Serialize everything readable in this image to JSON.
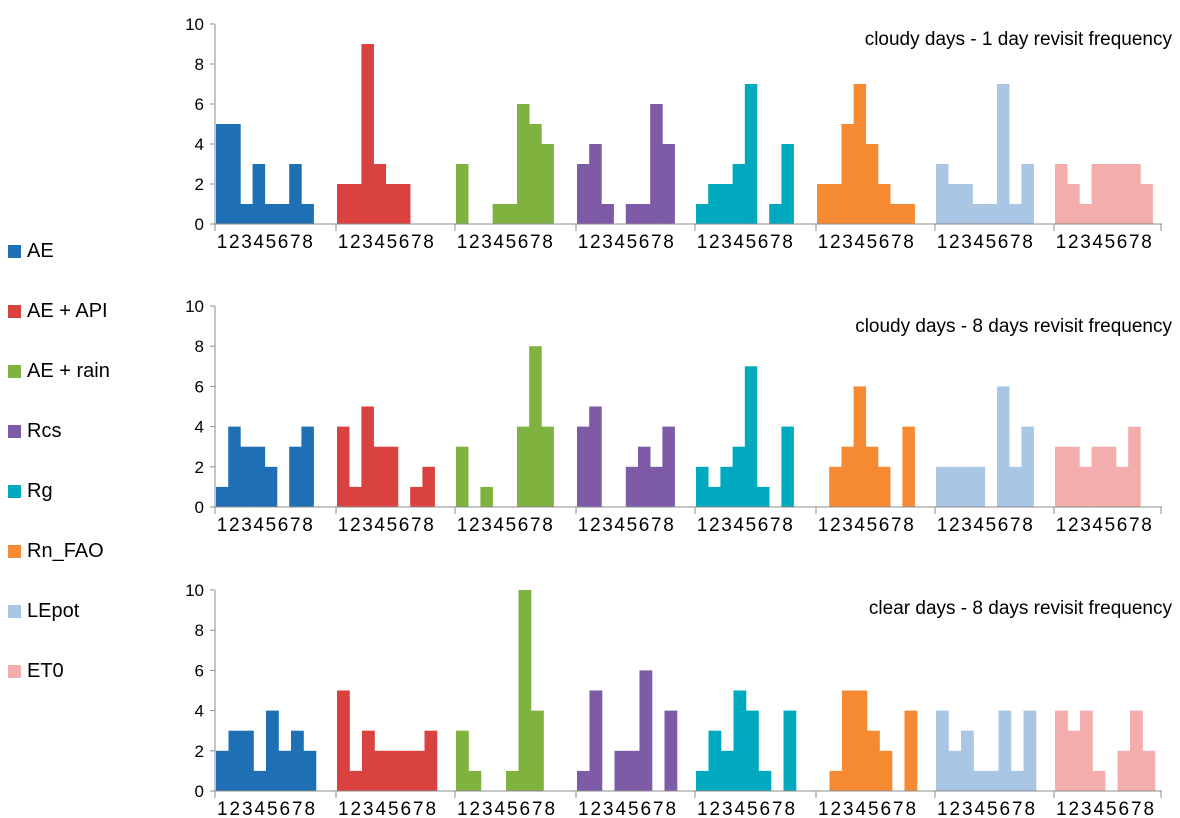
{
  "legend": [
    {
      "name": "AE",
      "color": "#1f6fb4"
    },
    {
      "name": "AE + API",
      "color": "#d9423f"
    },
    {
      "name": "AE + rain",
      "color": "#7fb23f"
    },
    {
      "name": "Rcs",
      "color": "#7e5ba6"
    },
    {
      "name": "Rg",
      "color": "#00a9be"
    },
    {
      "name": "Rn_FAO",
      "color": "#f68a32"
    },
    {
      "name": "LEpot",
      "color": "#a9c6e4"
    },
    {
      "name": "ET0",
      "color": "#f3adad"
    }
  ],
  "chart_data": [
    {
      "type": "bar",
      "title": "cloudy days - 1 day revisit frequency",
      "categories": [
        "1",
        "2",
        "3",
        "4",
        "5",
        "6",
        "7",
        "8"
      ],
      "ylim": [
        0,
        10
      ],
      "yticks": [
        "0",
        "2",
        "4",
        "6",
        "8",
        "10"
      ],
      "series": [
        {
          "name": "AE",
          "values": [
            5,
            5,
            1,
            3,
            1,
            1,
            3,
            1
          ]
        },
        {
          "name": "AE + API",
          "values": [
            2,
            2,
            9,
            3,
            2,
            2,
            0,
            0
          ]
        },
        {
          "name": "AE + rain",
          "values": [
            3,
            0,
            0,
            1,
            1,
            6,
            5,
            4
          ]
        },
        {
          "name": "Rcs",
          "values": [
            3,
            4,
            1,
            0,
            1,
            1,
            6,
            4
          ]
        },
        {
          "name": "Rg",
          "values": [
            1,
            2,
            2,
            3,
            7,
            0,
            1,
            4
          ]
        },
        {
          "name": "Rn_FAO",
          "values": [
            2,
            2,
            5,
            7,
            4,
            2,
            1,
            1
          ]
        },
        {
          "name": "LEpot",
          "values": [
            3,
            2,
            2,
            1,
            1,
            7,
            1,
            3
          ]
        },
        {
          "name": "ET0",
          "values": [
            3,
            2,
            1,
            3,
            3,
            3,
            3,
            2
          ]
        }
      ]
    },
    {
      "type": "bar",
      "title": "cloudy days - 8 days revisit frequency",
      "categories": [
        "1",
        "2",
        "3",
        "4",
        "5",
        "6",
        "7",
        "8"
      ],
      "ylim": [
        0,
        10
      ],
      "yticks": [
        "0",
        "2",
        "4",
        "6",
        "8",
        "10"
      ],
      "series": [
        {
          "name": "AE",
          "values": [
            1,
            4,
            3,
            3,
            2,
            0,
            3,
            4
          ]
        },
        {
          "name": "AE + API",
          "values": [
            4,
            1,
            5,
            3,
            3,
            0,
            1,
            2
          ]
        },
        {
          "name": "AE + rain",
          "values": [
            3,
            0,
            1,
            0,
            0,
            4,
            8,
            4
          ]
        },
        {
          "name": "Rcs",
          "values": [
            4,
            5,
            0,
            0,
            2,
            3,
            2,
            4
          ]
        },
        {
          "name": "Rg",
          "values": [
            2,
            1,
            2,
            3,
            7,
            1,
            0,
            4
          ]
        },
        {
          "name": "Rn_FAO",
          "values": [
            0,
            2,
            3,
            6,
            3,
            2,
            0,
            4
          ]
        },
        {
          "name": "LEpot",
          "values": [
            2,
            2,
            2,
            2,
            0,
            6,
            2,
            4
          ]
        },
        {
          "name": "ET0",
          "values": [
            3,
            3,
            2,
            3,
            3,
            2,
            4,
            0
          ]
        }
      ]
    },
    {
      "type": "bar",
      "title": "clear days - 8 days revisit frequency",
      "categories": [
        "1",
        "2",
        "3",
        "4",
        "5",
        "6",
        "7",
        "8"
      ],
      "ylim": [
        0,
        10
      ],
      "yticks": [
        "0",
        "2",
        "4",
        "6",
        "8",
        "10"
      ],
      "series": [
        {
          "name": "AE",
          "values": [
            2,
            3,
            3,
            1,
            4,
            2,
            3,
            2
          ]
        },
        {
          "name": "AE + API",
          "values": [
            5,
            1,
            3,
            2,
            2,
            2,
            2,
            3
          ]
        },
        {
          "name": "AE + rain",
          "values": [
            3,
            1,
            0,
            0,
            1,
            10,
            4,
            0
          ]
        },
        {
          "name": "Rcs",
          "values": [
            1,
            5,
            0,
            2,
            2,
            6,
            0,
            4
          ]
        },
        {
          "name": "Rg",
          "values": [
            1,
            3,
            2,
            5,
            4,
            1,
            0,
            4
          ]
        },
        {
          "name": "Rn_FAO",
          "values": [
            0,
            1,
            5,
            5,
            3,
            2,
            0,
            4
          ]
        },
        {
          "name": "LEpot",
          "values": [
            4,
            2,
            3,
            1,
            1,
            4,
            1,
            4
          ]
        },
        {
          "name": "ET0",
          "values": [
            4,
            3,
            4,
            1,
            0,
            2,
            4,
            2
          ]
        }
      ]
    }
  ]
}
